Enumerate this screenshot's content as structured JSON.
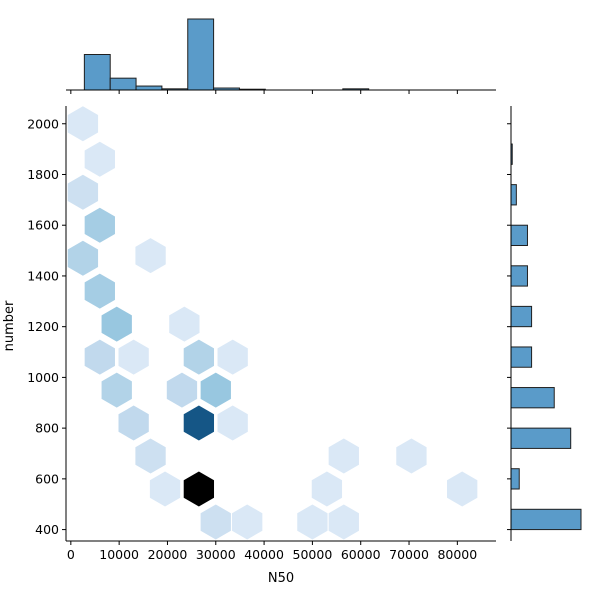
{
  "chart_data": {
    "type": "hexbin",
    "title": "",
    "xlabel": "N50",
    "ylabel": "number",
    "xlim": [
      -1000,
      88000
    ],
    "ylim": [
      355,
      2070
    ],
    "x_ticks": [
      0,
      10000,
      20000,
      30000,
      40000,
      50000,
      60000,
      70000,
      80000
    ],
    "x_tick_labels": [
      "0",
      "10000",
      "20000",
      "30000",
      "40000",
      "50000",
      "60000",
      "70000",
      "80000"
    ],
    "y_ticks": [
      400,
      600,
      800,
      1000,
      1200,
      1400,
      1600,
      1800,
      2000
    ],
    "y_tick_labels": [
      "400",
      "600",
      "800",
      "1000",
      "1200",
      "1400",
      "1600",
      "1800",
      "2000"
    ],
    "grid": false,
    "colors": {
      "bar_fill": "#5a9bc9",
      "bar_edge": "#1f1f1f"
    },
    "hexbins": [
      {
        "x": 2500,
        "y": 2000,
        "count": 1
      },
      {
        "x": 6000,
        "y": 1860,
        "count": 1
      },
      {
        "x": 2500,
        "y": 1730,
        "count": 2
      },
      {
        "x": 6000,
        "y": 1600,
        "count": 5
      },
      {
        "x": 16500,
        "y": 1480,
        "count": 1
      },
      {
        "x": 2500,
        "y": 1470,
        "count": 4
      },
      {
        "x": 6000,
        "y": 1340,
        "count": 5
      },
      {
        "x": 9500,
        "y": 1210,
        "count": 6
      },
      {
        "x": 23500,
        "y": 1210,
        "count": 1
      },
      {
        "x": 6000,
        "y": 1080,
        "count": 3
      },
      {
        "x": 13000,
        "y": 1080,
        "count": 1
      },
      {
        "x": 26500,
        "y": 1080,
        "count": 4
      },
      {
        "x": 33500,
        "y": 1080,
        "count": 1
      },
      {
        "x": 9500,
        "y": 950,
        "count": 4
      },
      {
        "x": 23000,
        "y": 950,
        "count": 3
      },
      {
        "x": 30000,
        "y": 950,
        "count": 6
      },
      {
        "x": 13000,
        "y": 820,
        "count": 3
      },
      {
        "x": 26500,
        "y": 820,
        "count": 18
      },
      {
        "x": 33500,
        "y": 820,
        "count": 1
      },
      {
        "x": 16500,
        "y": 690,
        "count": 2
      },
      {
        "x": 56500,
        "y": 690,
        "count": 1
      },
      {
        "x": 70500,
        "y": 690,
        "count": 1
      },
      {
        "x": 19500,
        "y": 560,
        "count": 1
      },
      {
        "x": 26500,
        "y": 560,
        "count": 24
      },
      {
        "x": 53000,
        "y": 560,
        "count": 1
      },
      {
        "x": 81000,
        "y": 560,
        "count": 1
      },
      {
        "x": 30000,
        "y": 430,
        "count": 2
      },
      {
        "x": 36500,
        "y": 430,
        "count": 1
      },
      {
        "x": 50000,
        "y": 430,
        "count": 1
      },
      {
        "x": 56500,
        "y": 430,
        "count": 1
      }
    ],
    "x_marginal_histogram": {
      "bin_edges": [
        2800,
        8150,
        13500,
        18850,
        24200,
        29550,
        34900,
        40250,
        45600,
        50950,
        56300,
        61650,
        67000,
        72350,
        77700,
        83050,
        88400
      ],
      "counts": [
        9,
        3,
        1,
        0.3,
        18,
        0.5,
        0.2,
        0,
        0,
        0,
        0.3,
        0,
        0,
        0,
        0,
        0
      ]
    },
    "y_marginal_histogram": {
      "bin_edges": [
        400,
        480,
        560,
        640,
        720,
        800,
        880,
        960,
        1040,
        1120,
        1200,
        1280,
        1360,
        1440,
        1520,
        1600,
        1680,
        1760,
        1840,
        1920,
        2000
      ],
      "counts": [
        17,
        0,
        2,
        0,
        14.5,
        0,
        10.5,
        0,
        5,
        0,
        5,
        0,
        4,
        0,
        4,
        0,
        1.3,
        0,
        0.3,
        0
      ]
    }
  }
}
